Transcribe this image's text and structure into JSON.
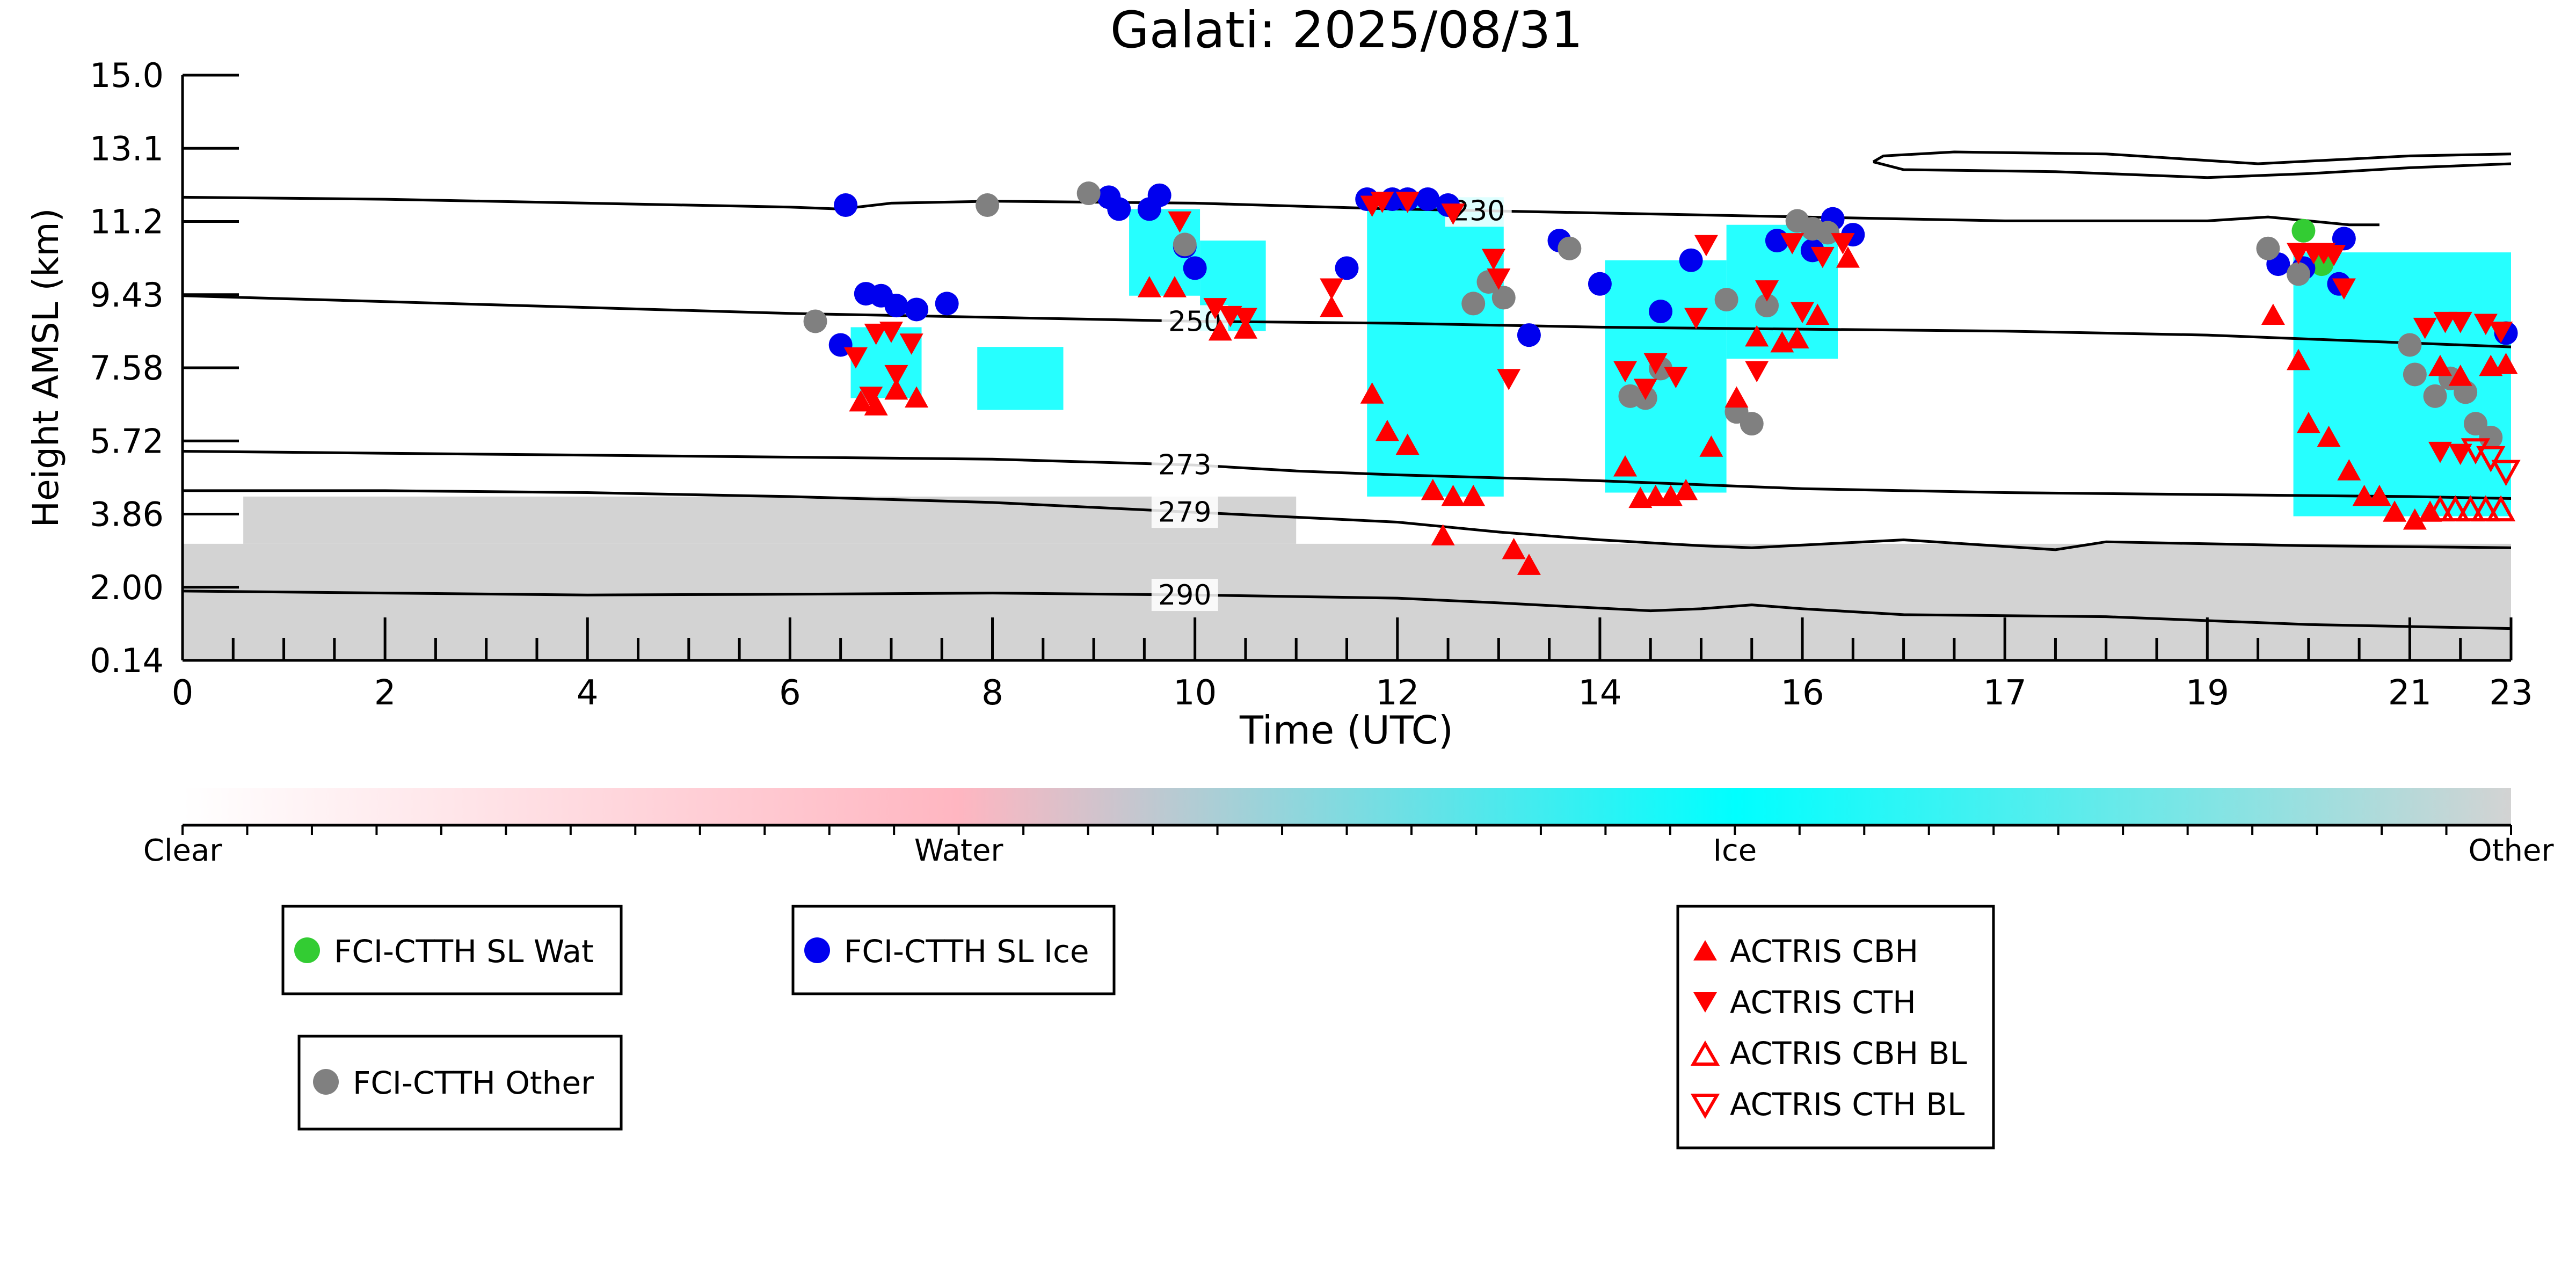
{
  "chart_data": {
    "type": "scatter",
    "title": "Galati: 2025/08/31",
    "xlabel": "Time (UTC)",
    "ylabel": "Height AMSL (km)",
    "xlim": [
      0,
      23
    ],
    "ylim": [
      0.14,
      15.0
    ],
    "x_ticks": [
      "0",
      "2",
      "4",
      "6",
      "8",
      "10",
      "12",
      "14",
      "16",
      "17",
      "19",
      "21",
      "23"
    ],
    "y_ticks": [
      "15.0",
      "13.1",
      "11.2",
      "9.43",
      "7.58",
      "5.72",
      "3.86",
      "2.00",
      "0.14"
    ],
    "grid": false,
    "colorbar": {
      "labels": [
        "Clear",
        "Water",
        "Ice",
        "Other"
      ],
      "colors": [
        "#ffffff",
        "#ffb6c1",
        "#00ffff",
        "#d3d3d3"
      ]
    },
    "isotherms": [
      {
        "label": "230",
        "label_x": 12.8,
        "points": [
          [
            0,
            11.9
          ],
          [
            2,
            11.85
          ],
          [
            4,
            11.75
          ],
          [
            6,
            11.65
          ],
          [
            6.5,
            11.6
          ],
          [
            7,
            11.75
          ],
          [
            8,
            11.8
          ],
          [
            10,
            11.75
          ],
          [
            12,
            11.6
          ],
          [
            14,
            11.5
          ],
          [
            16,
            11.4
          ],
          [
            18,
            11.3
          ],
          [
            20,
            11.3
          ],
          [
            20.6,
            11.4
          ],
          [
            21,
            11.3
          ],
          [
            21.4,
            11.2
          ],
          [
            21.7,
            11.2
          ]
        ]
      },
      {
        "label": "250",
        "label_x": 10.0,
        "points": [
          [
            0,
            9.4
          ],
          [
            2,
            9.25
          ],
          [
            4,
            9.1
          ],
          [
            6,
            8.95
          ],
          [
            8,
            8.85
          ],
          [
            10,
            8.75
          ],
          [
            12,
            8.7
          ],
          [
            14,
            8.6
          ],
          [
            16,
            8.55
          ],
          [
            18,
            8.5
          ],
          [
            20,
            8.4
          ],
          [
            22,
            8.2
          ],
          [
            23,
            8.1
          ]
        ]
      },
      {
        "label": "273",
        "label_x": 9.9,
        "points": [
          [
            0,
            5.45
          ],
          [
            2,
            5.4
          ],
          [
            4,
            5.35
          ],
          [
            6,
            5.3
          ],
          [
            8,
            5.25
          ],
          [
            10,
            5.1
          ],
          [
            11,
            4.95
          ],
          [
            12,
            4.85
          ],
          [
            14,
            4.7
          ],
          [
            16,
            4.5
          ],
          [
            18,
            4.4
          ],
          [
            20,
            4.35
          ],
          [
            22,
            4.3
          ],
          [
            23,
            4.25
          ]
        ]
      },
      {
        "label": "279",
        "label_x": 9.9,
        "points": [
          [
            0,
            4.45
          ],
          [
            2,
            4.45
          ],
          [
            4,
            4.4
          ],
          [
            6,
            4.3
          ],
          [
            8,
            4.15
          ],
          [
            10,
            3.9
          ],
          [
            12,
            3.65
          ],
          [
            13,
            3.4
          ],
          [
            14,
            3.2
          ],
          [
            15,
            3.05
          ],
          [
            15.5,
            3.0
          ],
          [
            17,
            3.2
          ],
          [
            18.5,
            2.95
          ],
          [
            19,
            3.15
          ],
          [
            21,
            3.05
          ],
          [
            23,
            3.0
          ]
        ]
      },
      {
        "label": "290",
        "label_x": 9.9,
        "points": [
          [
            0,
            1.9
          ],
          [
            2,
            1.85
          ],
          [
            4,
            1.8
          ],
          [
            6,
            1.82
          ],
          [
            8,
            1.85
          ],
          [
            10,
            1.8
          ],
          [
            12,
            1.72
          ],
          [
            13,
            1.6
          ],
          [
            14.5,
            1.4
          ],
          [
            15,
            1.45
          ],
          [
            15.5,
            1.55
          ],
          [
            16,
            1.45
          ],
          [
            17,
            1.3
          ],
          [
            19,
            1.25
          ],
          [
            21,
            1.05
          ],
          [
            23,
            0.95
          ]
        ]
      },
      {
        "label": "",
        "label_x": null,
        "points": [
          [
            16.7,
            12.8
          ],
          [
            16.8,
            12.95
          ],
          [
            17.5,
            13.05
          ],
          [
            19,
            13.0
          ],
          [
            20.5,
            12.75
          ],
          [
            22,
            12.95
          ],
          [
            23,
            13.0
          ]
        ]
      },
      {
        "label": "",
        "label_x": null,
        "points": [
          [
            16.7,
            12.8
          ],
          [
            17,
            12.6
          ],
          [
            18.5,
            12.55
          ],
          [
            19.5,
            12.45
          ],
          [
            20,
            12.4
          ],
          [
            21,
            12.5
          ],
          [
            22,
            12.65
          ],
          [
            23,
            12.75
          ]
        ]
      }
    ],
    "series": [
      {
        "name": "FCI-CTTH SL Wat",
        "marker": "circle",
        "color": "#33cc33",
        "filled": true,
        "points": [
          [
            20.95,
            11.05
          ],
          [
            21.13,
            10.2
          ]
        ]
      },
      {
        "name": "FCI-CTTH SL Ice",
        "marker": "circle",
        "color": "#0000ee",
        "filled": true,
        "points": [
          [
            6.55,
            11.7
          ],
          [
            6.75,
            9.45
          ],
          [
            6.9,
            9.4
          ],
          [
            7.05,
            9.15
          ],
          [
            7.25,
            9.05
          ],
          [
            7.55,
            9.2
          ],
          [
            6.5,
            8.15
          ],
          [
            9.15,
            11.9
          ],
          [
            9.25,
            11.6
          ],
          [
            9.55,
            11.6
          ],
          [
            9.65,
            11.95
          ],
          [
            9.9,
            10.65
          ],
          [
            10.0,
            10.1
          ],
          [
            11.5,
            10.1
          ],
          [
            11.7,
            11.85
          ],
          [
            11.95,
            11.85
          ],
          [
            12.1,
            11.85
          ],
          [
            12.3,
            11.85
          ],
          [
            12.5,
            11.7
          ],
          [
            13.3,
            8.4
          ],
          [
            13.6,
            10.8
          ],
          [
            14.0,
            9.7
          ],
          [
            14.6,
            9.0
          ],
          [
            14.9,
            10.3
          ],
          [
            15.75,
            10.8
          ],
          [
            16.1,
            10.55
          ],
          [
            16.3,
            11.35
          ],
          [
            16.5,
            10.95
          ],
          [
            20.7,
            10.2
          ],
          [
            20.95,
            10.1
          ],
          [
            21.3,
            9.7
          ],
          [
            21.35,
            10.85
          ],
          [
            22.95,
            8.45
          ]
        ]
      },
      {
        "name": "FCI-CTTH Other",
        "marker": "circle",
        "color": "#808080",
        "filled": true,
        "points": [
          [
            6.25,
            8.75
          ],
          [
            7.95,
            11.7
          ],
          [
            8.95,
            12.0
          ],
          [
            9.9,
            10.7
          ],
          [
            12.75,
            9.2
          ],
          [
            12.9,
            9.75
          ],
          [
            13.05,
            9.35
          ],
          [
            13.7,
            10.6
          ],
          [
            14.3,
            6.85
          ],
          [
            14.45,
            6.8
          ],
          [
            14.6,
            7.55
          ],
          [
            15.25,
            9.3
          ],
          [
            15.35,
            6.45
          ],
          [
            15.5,
            6.15
          ],
          [
            15.65,
            9.15
          ],
          [
            15.95,
            11.3
          ],
          [
            16.1,
            11.1
          ],
          [
            16.25,
            11.0
          ],
          [
            20.6,
            10.6
          ],
          [
            20.9,
            9.95
          ],
          [
            22.0,
            8.15
          ],
          [
            22.05,
            7.4
          ],
          [
            22.25,
            6.85
          ],
          [
            22.4,
            7.3
          ],
          [
            22.55,
            6.95
          ],
          [
            22.65,
            6.15
          ],
          [
            22.8,
            5.8
          ]
        ]
      },
      {
        "name": "ACTRIS CBH",
        "marker": "triangle-up",
        "color": "#ff0000",
        "filled": true,
        "points": [
          [
            6.7,
            6.7
          ],
          [
            6.85,
            6.6
          ],
          [
            7.05,
            7.0
          ],
          [
            7.25,
            6.8
          ],
          [
            9.55,
            9.6
          ],
          [
            9.8,
            9.6
          ],
          [
            10.25,
            8.5
          ],
          [
            10.5,
            8.55
          ],
          [
            11.35,
            9.1
          ],
          [
            11.75,
            6.9
          ],
          [
            11.9,
            5.95
          ],
          [
            12.1,
            5.6
          ],
          [
            12.35,
            4.45
          ],
          [
            12.55,
            4.3
          ],
          [
            12.75,
            4.3
          ],
          [
            12.45,
            3.3
          ],
          [
            13.15,
            2.95
          ],
          [
            13.3,
            2.55
          ],
          [
            14.25,
            5.05
          ],
          [
            14.4,
            4.25
          ],
          [
            14.55,
            4.3
          ],
          [
            14.7,
            4.3
          ],
          [
            14.85,
            4.45
          ],
          [
            15.1,
            5.55
          ],
          [
            15.35,
            6.8
          ],
          [
            15.55,
            8.35
          ],
          [
            15.8,
            8.2
          ],
          [
            15.95,
            8.3
          ],
          [
            16.15,
            8.9
          ],
          [
            16.45,
            10.35
          ],
          [
            20.65,
            8.9
          ],
          [
            20.9,
            7.75
          ],
          [
            21.0,
            6.15
          ],
          [
            21.2,
            5.8
          ],
          [
            21.4,
            4.95
          ],
          [
            21.55,
            4.3
          ],
          [
            21.7,
            4.3
          ],
          [
            21.85,
            3.9
          ],
          [
            22.05,
            3.7
          ],
          [
            22.2,
            3.9
          ],
          [
            22.3,
            7.6
          ],
          [
            22.5,
            7.35
          ],
          [
            22.8,
            7.6
          ],
          [
            22.95,
            7.65
          ]
        ]
      },
      {
        "name": "ACTRIS CTH",
        "marker": "triangle-down",
        "color": "#ff0000",
        "filled": true,
        "points": [
          [
            6.65,
            7.85
          ],
          [
            6.85,
            8.45
          ],
          [
            7.0,
            8.5
          ],
          [
            7.2,
            8.2
          ],
          [
            6.8,
            6.85
          ],
          [
            7.05,
            7.4
          ],
          [
            9.85,
            11.3
          ],
          [
            10.2,
            9.1
          ],
          [
            10.35,
            8.9
          ],
          [
            10.5,
            8.85
          ],
          [
            11.35,
            9.6
          ],
          [
            11.75,
            11.7
          ],
          [
            11.85,
            11.8
          ],
          [
            12.1,
            11.8
          ],
          [
            12.55,
            11.5
          ],
          [
            12.95,
            10.35
          ],
          [
            13.0,
            9.85
          ],
          [
            13.1,
            7.3
          ],
          [
            14.25,
            7.5
          ],
          [
            14.45,
            7.05
          ],
          [
            14.55,
            7.7
          ],
          [
            14.75,
            7.35
          ],
          [
            14.95,
            8.85
          ],
          [
            15.05,
            10.7
          ],
          [
            15.55,
            7.5
          ],
          [
            15.65,
            9.55
          ],
          [
            15.9,
            10.75
          ],
          [
            16.0,
            9.0
          ],
          [
            16.2,
            10.4
          ],
          [
            16.4,
            10.75
          ],
          [
            20.9,
            10.5
          ],
          [
            21.05,
            10.5
          ],
          [
            21.15,
            10.5
          ],
          [
            21.25,
            10.45
          ],
          [
            21.35,
            9.6
          ],
          [
            22.15,
            8.6
          ],
          [
            22.35,
            8.75
          ],
          [
            22.5,
            8.75
          ],
          [
            22.75,
            8.7
          ],
          [
            22.9,
            8.5
          ],
          [
            22.3,
            5.45
          ],
          [
            22.5,
            5.4
          ]
        ]
      },
      {
        "name": "ACTRIS CBH BL",
        "marker": "triangle-up",
        "color": "#ff0000",
        "filled": false,
        "points": [
          [
            22.3,
            3.95
          ],
          [
            22.45,
            3.95
          ],
          [
            22.6,
            3.95
          ],
          [
            22.75,
            3.95
          ],
          [
            22.9,
            3.95
          ]
        ]
      },
      {
        "name": "ACTRIS CTH BL",
        "marker": "triangle-down",
        "color": "#ff0000",
        "filled": false,
        "points": [
          [
            22.65,
            5.5
          ],
          [
            22.8,
            5.3
          ],
          [
            22.95,
            4.95
          ]
        ]
      }
    ],
    "cloud_regions": [
      {
        "type": "Ice",
        "x": [
          6.6,
          7.3
        ],
        "y": [
          6.8,
          8.6
        ]
      },
      {
        "type": "Ice",
        "x": [
          7.85,
          8.7
        ],
        "y": [
          6.5,
          8.1
        ]
      },
      {
        "type": "Ice",
        "x": [
          9.35,
          10.05
        ],
        "y": [
          9.4,
          11.6
        ]
      },
      {
        "type": "Ice",
        "x": [
          10.05,
          10.7
        ],
        "y": [
          8.5,
          10.8
        ]
      },
      {
        "type": "Ice",
        "x": [
          11.7,
          13.05
        ],
        "y": [
          4.3,
          11.9
        ]
      },
      {
        "type": "Ice",
        "x": [
          14.05,
          15.25
        ],
        "y": [
          4.4,
          10.3
        ]
      },
      {
        "type": "Ice",
        "x": [
          15.25,
          16.35
        ],
        "y": [
          7.8,
          11.2
        ]
      },
      {
        "type": "Ice",
        "x": [
          20.85,
          23.0
        ],
        "y": [
          3.8,
          10.5
        ]
      },
      {
        "type": "Other",
        "x": [
          0.0,
          23.0
        ],
        "y": [
          0.14,
          3.1
        ]
      },
      {
        "type": "Other",
        "x": [
          0.6,
          11.0
        ],
        "y": [
          3.1,
          4.3
        ]
      }
    ]
  }
}
